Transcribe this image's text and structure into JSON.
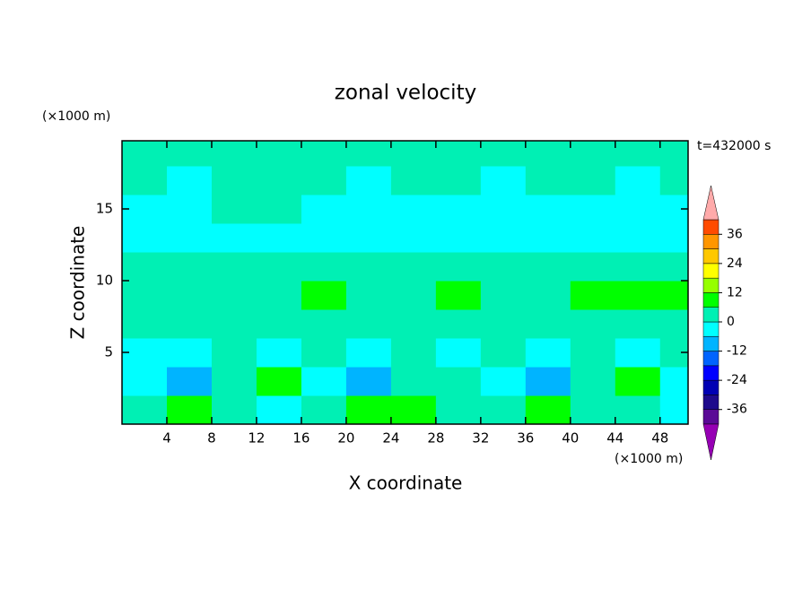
{
  "chart_data": {
    "type": "contour",
    "title": "zonal velocity",
    "x_label": "X coordinate",
    "y_label": "Z coordinate",
    "x_unit": "(×1000 m)",
    "y_unit": "(×1000 m)",
    "annotation": "t=432000 s",
    "x": [
      2,
      6,
      10,
      14,
      18,
      22,
      26,
      30,
      34,
      38,
      42,
      46,
      50
    ],
    "z": [
      1,
      3,
      5,
      7,
      9,
      11,
      13,
      15,
      17,
      19
    ],
    "values": [
      [
        3,
        8,
        3,
        -3,
        3,
        9,
        9,
        3,
        3,
        9,
        3,
        3,
        -3
      ],
      [
        -3,
        -8,
        3,
        9,
        -3,
        -8,
        3,
        3,
        -3,
        -8,
        3,
        8,
        -3
      ],
      [
        -3,
        -3,
        3,
        -3,
        3,
        -3,
        3,
        -3,
        3,
        -3,
        3,
        -3,
        3
      ],
      [
        3,
        3,
        3,
        3,
        3,
        3,
        3,
        3,
        3,
        3,
        3,
        3,
        3
      ],
      [
        3,
        3,
        3,
        3,
        9,
        3,
        3,
        9,
        3,
        3,
        9,
        9,
        9
      ],
      [
        3,
        3,
        3,
        3,
        3,
        3,
        3,
        3,
        3,
        3,
        3,
        3,
        3
      ],
      [
        -3,
        -3,
        -3,
        -3,
        -3,
        -3,
        -3,
        -3,
        -3,
        -3,
        -3,
        -3,
        -3
      ],
      [
        -3,
        -3,
        3,
        3,
        -3,
        -3,
        -3,
        -3,
        -3,
        -3,
        -3,
        -3,
        -3
      ],
      [
        3,
        -3,
        3,
        3,
        3,
        -3,
        3,
        3,
        -3,
        3,
        3,
        -3,
        3
      ],
      [
        3,
        3,
        3,
        3,
        3,
        3,
        3,
        3,
        3,
        3,
        3,
        3,
        3
      ]
    ],
    "levels": [
      -42,
      -36,
      -30,
      -24,
      -18,
      -12,
      -6,
      0,
      6,
      12,
      18,
      24,
      30,
      36,
      42
    ],
    "colors": [
      "#5a0a96",
      "#1e0a8c",
      "#0000b4",
      "#0000ff",
      "#0064ff",
      "#00b4ff",
      "#00ffff",
      "#00f0b4",
      "#00ff00",
      "#96ff00",
      "#ffff00",
      "#ffc800",
      "#ff9600",
      "#ff4b00",
      "#ff0000"
    ],
    "extend_colors": [
      "#9600b4",
      "#ffaaaa"
    ],
    "colorbar_ticks": [
      -36,
      -24,
      -12,
      0,
      12,
      24,
      36
    ],
    "xlim": [
      0,
      50.5
    ],
    "ylim": [
      0,
      19.75
    ],
    "xticks": [
      4,
      8,
      12,
      16,
      20,
      24,
      28,
      32,
      36,
      40,
      44,
      48
    ],
    "yticks": [
      5,
      10,
      15
    ]
  }
}
